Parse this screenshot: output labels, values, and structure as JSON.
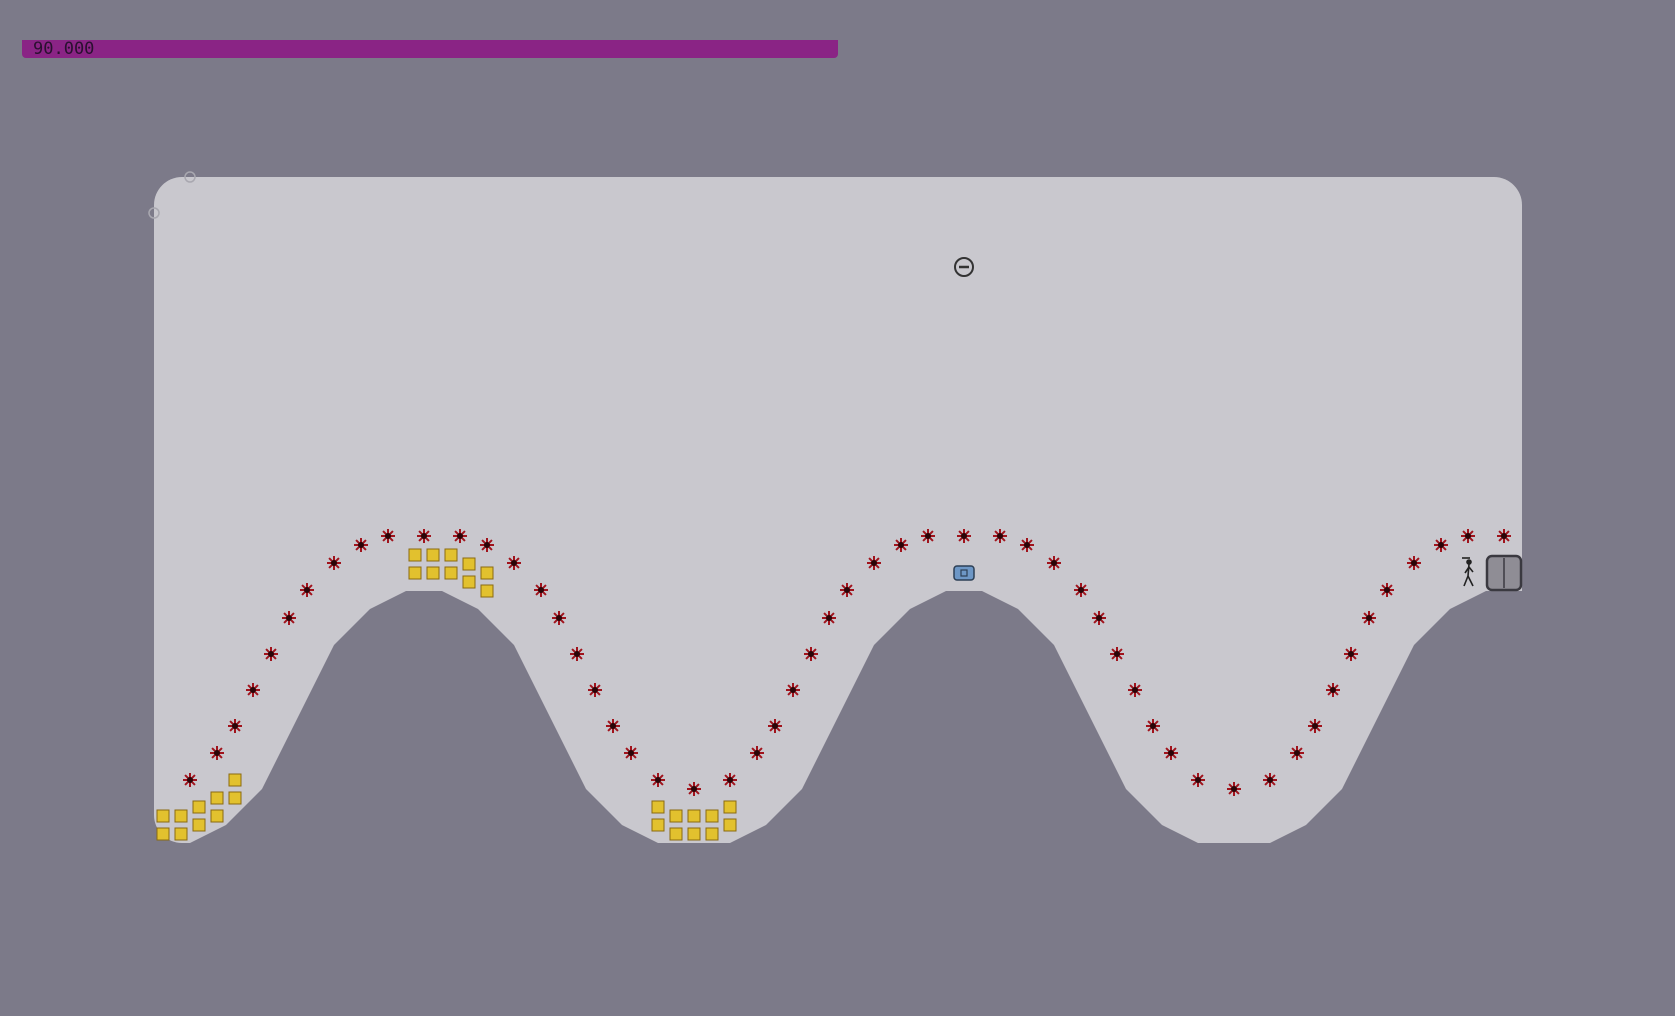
{
  "hud": {
    "time_remaining": "90.000"
  },
  "colors": {
    "background": "#7c7a89",
    "playfield": "#c9c8ce",
    "terrain": "#7c7a89",
    "timer_bar": "#8a2485",
    "mine_fill": "#a0131c",
    "gold_fill": "#e2c12e",
    "gold_border": "#8a6a10",
    "switch_fill": "#6d97c6",
    "door_fill": "#8f8d95"
  },
  "icons": {
    "mine": "mine-icon",
    "gold": "gold-icon",
    "drone": "drone-icon",
    "switch": "exit-switch-icon",
    "door": "exit-door-icon",
    "ninja": "ninja-icon"
  }
}
